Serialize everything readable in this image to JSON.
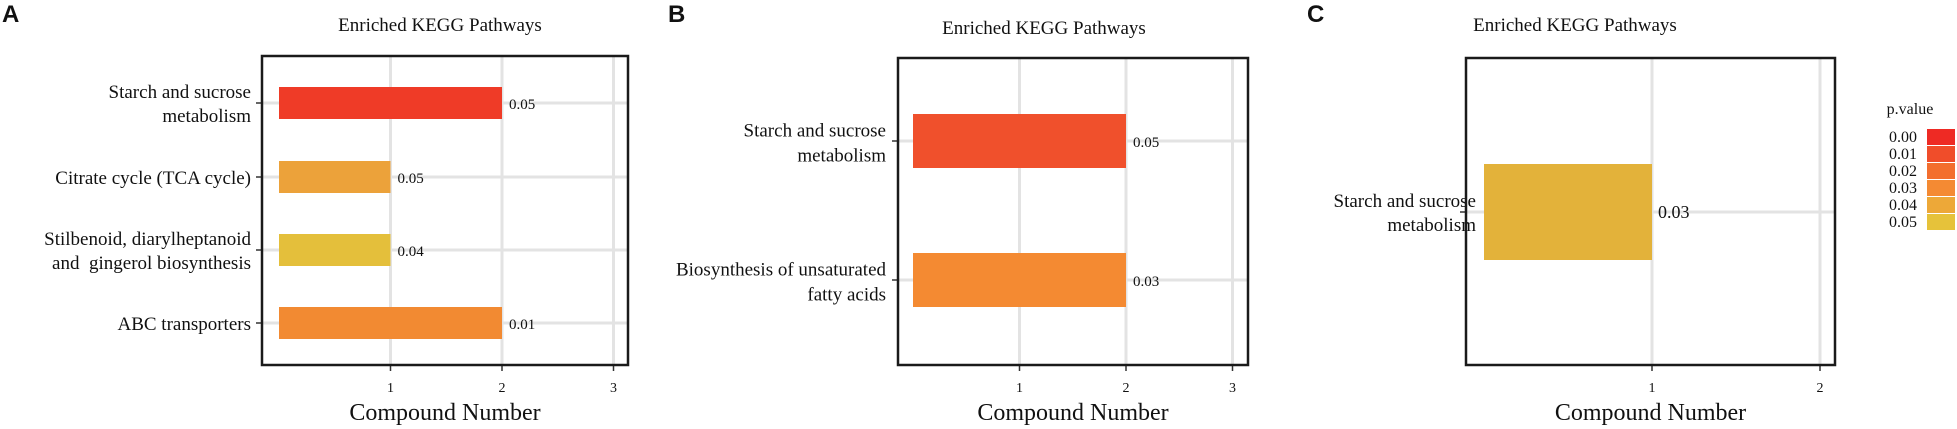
{
  "figure": {
    "panels": [
      "A",
      "B",
      "C"
    ],
    "legend": {
      "title": "p.value",
      "items": [
        {
          "label": "0.00",
          "color": "#ee2a24"
        },
        {
          "label": "0.01",
          "color": "#f04d2a"
        },
        {
          "label": "0.02",
          "color": "#f36e2e"
        },
        {
          "label": "0.03",
          "color": "#f48a33"
        },
        {
          "label": "0.04",
          "color": "#eda838"
        },
        {
          "label": "0.05",
          "color": "#e6c23a"
        }
      ]
    }
  },
  "chart_data": [
    {
      "type": "bar",
      "orientation": "horizontal",
      "panel": "A",
      "title": "Enriched KEGG Pathways",
      "xlabel": "Compound Number",
      "xlim": [
        0,
        3
      ],
      "xticks": [
        "1",
        "2",
        "3"
      ],
      "grid": true,
      "categories": [
        [
          "Starch and sucrose",
          " metabolism"
        ],
        [
          "Citrate cycle (TCA cycle)"
        ],
        [
          "Stilbenoid, diarylheptanoid",
          "and  gingerol biosynthesis"
        ],
        [
          "ABC transporters"
        ]
      ],
      "values": [
        2,
        1,
        1,
        2
      ],
      "labels": [
        "0.05",
        "0.05",
        "0.04",
        "0.01"
      ],
      "colors": [
        "#ef3b27",
        "#eca23a",
        "#e4bf3b",
        "#f28a32"
      ]
    },
    {
      "type": "bar",
      "orientation": "horizontal",
      "panel": "B",
      "title": "Enriched KEGG Pathways",
      "xlabel": "Compound Number",
      "xlim": [
        0,
        3
      ],
      "xticks": [
        "1",
        "2",
        "3"
      ],
      "grid": true,
      "categories": [
        [
          "Starch and sucrose",
          "metabolism"
        ],
        [
          "Biosynthesis of unsaturated",
          "fatty acids"
        ]
      ],
      "values": [
        2,
        2
      ],
      "labels": [
        "0.05",
        "0.03"
      ],
      "colors": [
        "#f0502c",
        "#f48a32"
      ]
    },
    {
      "type": "bar",
      "orientation": "horizontal",
      "panel": "C",
      "title": "Enriched KEGG Pathways",
      "xlabel": "Compound Number",
      "xlim": [
        0,
        2
      ],
      "xticks": [
        "1",
        "2"
      ],
      "grid": true,
      "categories": [
        [
          "Starch and sucrose",
          "metabolism"
        ]
      ],
      "values": [
        1
      ],
      "labels": [
        "0.03"
      ],
      "colors": [
        "#e3b23a"
      ]
    }
  ]
}
